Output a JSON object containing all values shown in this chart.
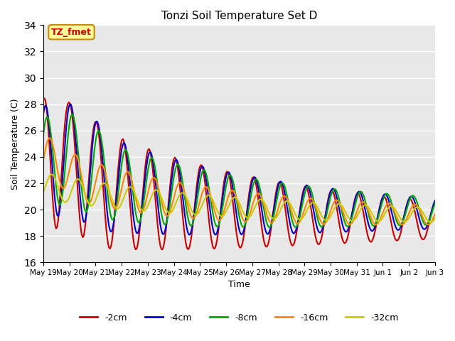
{
  "title": "Tonzi Soil Temperature Set D",
  "xlabel": "Time",
  "ylabel": "Soil Temperature (C)",
  "ylim": [
    16,
    34
  ],
  "legend_labels": [
    "-2cm",
    "-4cm",
    "-8cm",
    "-16cm",
    "-32cm"
  ],
  "legend_colors": [
    "#cc0000",
    "#0000cc",
    "#00aa00",
    "#ff8800",
    "#cccc00"
  ],
  "line_widths": [
    1.5,
    1.5,
    1.5,
    1.5,
    1.5
  ],
  "annotation_text": "TZ_fmet",
  "annotation_bg": "#ffff99",
  "annotation_border": "#cc8800",
  "yticks": [
    16,
    18,
    20,
    22,
    24,
    26,
    28,
    30,
    32,
    34
  ],
  "xtick_labels": [
    "May 19",
    "May 20",
    "May 21",
    "May 22",
    "May 23",
    "May 24",
    "May 25",
    "May 26",
    "May 27",
    "May 28",
    "May 29",
    "May 30",
    "May 31",
    "Jun 1",
    "Jun 2",
    "Jun 3"
  ],
  "num_points": 400
}
